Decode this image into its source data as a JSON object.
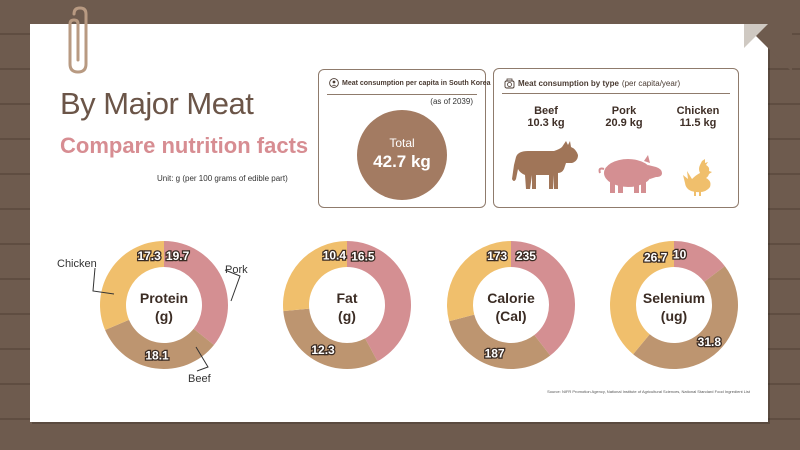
{
  "header": {
    "title": "By Major Meat",
    "subtitle": "Compare nutrition facts",
    "unit": "Unit: g (per 100 grams of edible part)"
  },
  "consumption_total": {
    "heading": "Meat consumption per capita in South Korea",
    "as_of": "(as of 2039)",
    "label": "Total",
    "value": "42.7 kg"
  },
  "consumption_by_type": {
    "heading": "Meat consumption by type",
    "heading_sub": "(per capita/year)",
    "items": [
      {
        "name": "Beef",
        "value": "10.3 kg",
        "icon": "cow-icon"
      },
      {
        "name": "Pork",
        "value": "20.9 kg",
        "icon": "pig-icon"
      },
      {
        "name": "Chicken",
        "value": "11.5 kg",
        "icon": "chicken-icon"
      }
    ]
  },
  "colors": {
    "pork": "#d48f92",
    "beef": "#bd9570",
    "chicken": "#f0bf6c",
    "accent": "#a37b62"
  },
  "callouts": {
    "chicken": "Chicken",
    "pork": "Pork",
    "beef": "Beef"
  },
  "chart_data": [
    {
      "type": "pie",
      "title": "Protein",
      "unit": "(g)",
      "series": [
        {
          "name": "Pork",
          "value": 19.7,
          "label": "19.7"
        },
        {
          "name": "Beef",
          "value": 18.1,
          "label": "18.1"
        },
        {
          "name": "Chicken",
          "value": 17.3,
          "label": "17.3"
        }
      ]
    },
    {
      "type": "pie",
      "title": "Fat",
      "unit": "(g)",
      "series": [
        {
          "name": "Pork",
          "value": 16.5,
          "label": "16.5"
        },
        {
          "name": "Beef",
          "value": 12.3,
          "label": "12.3"
        },
        {
          "name": "Chicken",
          "value": 10.4,
          "label": "10.4"
        }
      ]
    },
    {
      "type": "pie",
      "title": "Calorie",
      "unit": "(Cal)",
      "series": [
        {
          "name": "Pork",
          "value": 235,
          "label": "235"
        },
        {
          "name": "Beef",
          "value": 187,
          "label": "187"
        },
        {
          "name": "Chicken",
          "value": 173,
          "label": "173"
        }
      ]
    },
    {
      "type": "pie",
      "title": "Selenium",
      "unit": "(ug)",
      "series": [
        {
          "name": "Pork",
          "value": 10,
          "label": "10"
        },
        {
          "name": "Beef",
          "value": 31.8,
          "label": "31.8"
        },
        {
          "name": "Chicken",
          "value": 26.7,
          "label": "26.7"
        }
      ]
    }
  ],
  "source": "Source: NIFR Promotion Agency, National Institute of Agricultural Sciences, National Standard Food Ingredient List"
}
